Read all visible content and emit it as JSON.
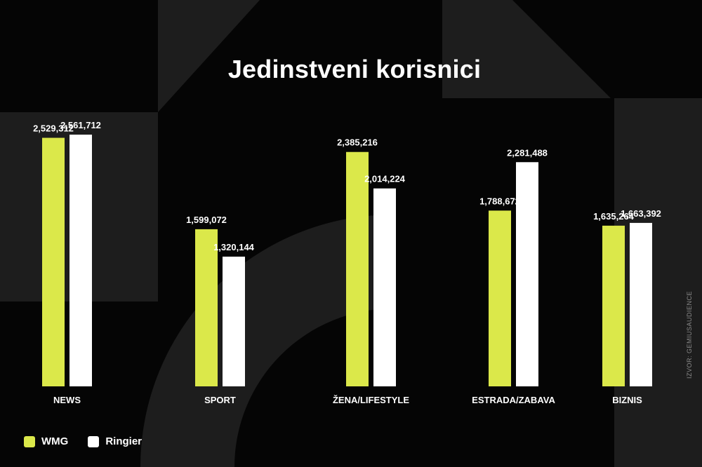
{
  "colors": {
    "wmg": "#dbe84a",
    "ringier": "#ffffff",
    "background": "#050505"
  },
  "legend": [
    {
      "label": "WMG",
      "color": "#dbe84a"
    },
    {
      "label": "Ringier",
      "color": "#ffffff"
    }
  ],
  "source": "IZVOR: GEMIUSAUDIENCE",
  "chart_data": {
    "type": "bar",
    "title": "Jedinstveni korisnici",
    "xlabel": "",
    "ylabel": "",
    "ylim": [
      0,
      2561712
    ],
    "categories": [
      "NEWS",
      "SPORT",
      "ŽENA/LIFESTYLE",
      "ESTRADA/ZABAVA",
      "BIZNIS"
    ],
    "series": [
      {
        "name": "WMG",
        "values": [
          2529312,
          1599072,
          2385216,
          1788672,
          1635264
        ],
        "labels": [
          "2,529,312",
          "1,599,072",
          "2,385,216",
          "1,788,672",
          "1,635,264"
        ]
      },
      {
        "name": "Ringier",
        "values": [
          2561712,
          1320144,
          2014224,
          2281488,
          1663392
        ],
        "labels": [
          "2,561,712",
          "1,320,144",
          "2,014,224",
          "2,281,488",
          "1,663,392"
        ]
      }
    ],
    "grid": false,
    "legend_position": "bottom-left"
  }
}
